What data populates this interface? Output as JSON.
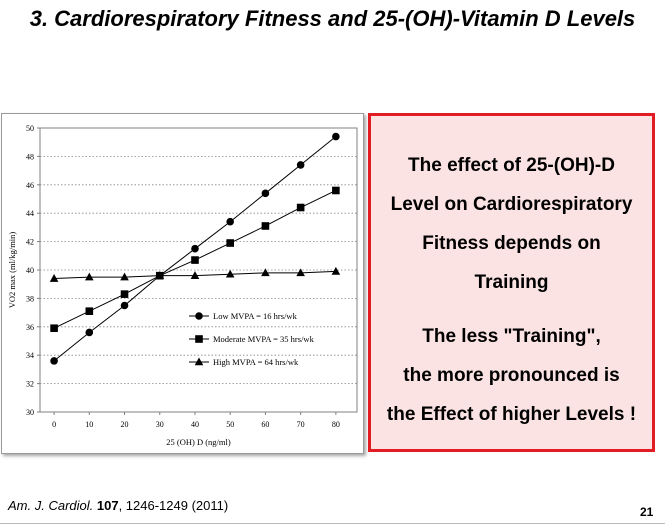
{
  "slide": {
    "title": "3. Cardiorespiratory Fitness and 25-(OH)-Vitamin D Levels",
    "page_number": "21"
  },
  "callout": {
    "paragraph1": [
      "The effect of 25-(OH)-D",
      "Level on Cardiorespiratory",
      "Fitness depends on",
      "Training"
    ],
    "paragraph2": [
      "The less \"Training\",",
      "the more pronounced is",
      "the Effect of higher Levels !"
    ],
    "border_color": "#e31c24",
    "background_color": "#fbe3e3"
  },
  "citation": {
    "journal": "Am. J. Cardiol.",
    "volume": "107",
    "rest": ", 1246-1249 (2011)"
  },
  "chart_data": {
    "type": "line",
    "xlabel": "25 (OH) D (ng/ml)",
    "ylabel": "VO2 max (ml/kg/min)",
    "x": [
      0,
      10,
      20,
      30,
      40,
      50,
      60,
      70,
      80
    ],
    "xlim": [
      -4,
      86
    ],
    "ylim": [
      30,
      50
    ],
    "yticks": [
      30,
      32,
      34,
      36,
      38,
      40,
      42,
      44,
      46,
      48,
      50
    ],
    "grid": "horizontal dotted",
    "legend_position": "center-right",
    "series": [
      {
        "name": "Low MVPA = 16 hrs/wk",
        "marker": "circle",
        "values": [
          33.6,
          35.6,
          37.5,
          39.6,
          41.5,
          43.4,
          45.4,
          47.4,
          49.4
        ]
      },
      {
        "name": "Moderate MVPA = 35 hrs/wk",
        "marker": "square",
        "values": [
          35.9,
          37.1,
          38.3,
          39.6,
          40.7,
          41.9,
          43.1,
          44.4,
          45.6
        ]
      },
      {
        "name": "High MVPA = 64 hrs/wk",
        "marker": "triangle",
        "values": [
          39.4,
          39.5,
          39.5,
          39.6,
          39.6,
          39.7,
          39.8,
          39.8,
          39.9
        ]
      }
    ]
  }
}
